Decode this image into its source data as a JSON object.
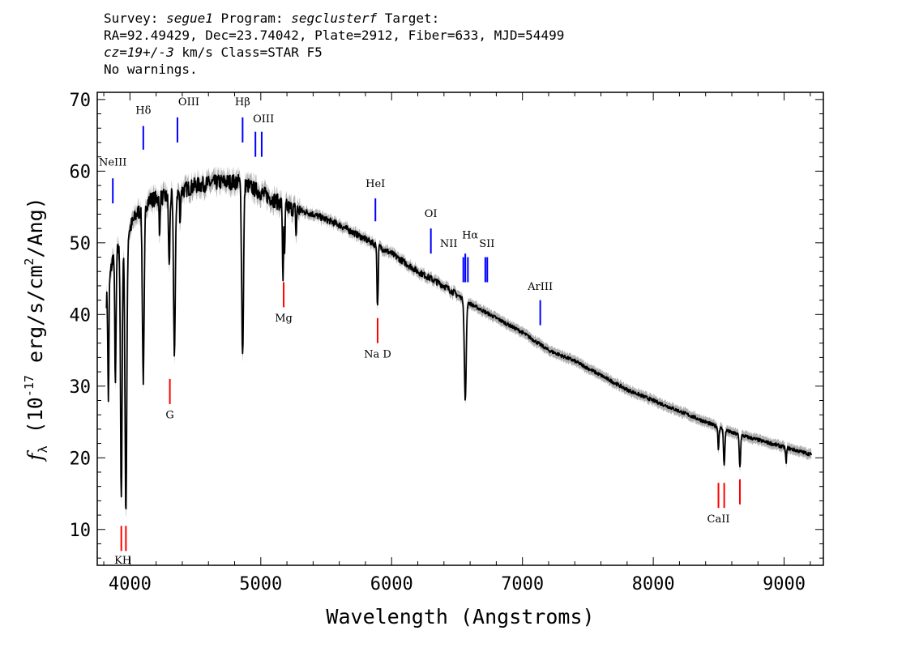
{
  "header": {
    "survey_label": "Survey: ",
    "survey": "segue1",
    "program_label": " Program: ",
    "program": "segclusterf",
    "target_label": " Target:",
    "line2": "RA=92.49429, Dec=23.74042, Plate=2912, Fiber=633, MJD=54499",
    "cz": "cz=19+/-3",
    "cz_units": " km/s Class=STAR F5",
    "line4": "No warnings."
  },
  "chart_data": {
    "type": "line",
    "xlabel": "Wavelength (Angstroms)",
    "ylabel_prefix": "f",
    "ylabel_sub": "λ",
    "ylabel_mid": " (10",
    "ylabel_exp1": "-17",
    "ylabel_mid2": " erg/s/cm",
    "ylabel_exp2": "2",
    "ylabel_end": "/Ang)",
    "xlim": [
      3750,
      9300
    ],
    "ylim": [
      5,
      71
    ],
    "x_ticks": [
      4000,
      5000,
      6000,
      7000,
      8000,
      9000
    ],
    "x_tick_labels": [
      "4000",
      "5000",
      "6000",
      "7000",
      "8000",
      "9000"
    ],
    "y_ticks": [
      10,
      20,
      30,
      40,
      50,
      60,
      70
    ],
    "y_tick_labels": [
      "10",
      "20",
      "30",
      "40",
      "50",
      "60",
      "70"
    ],
    "x_minor_step": 200,
    "y_minor_step": 2,
    "series": [
      {
        "color": "#000000",
        "continuum": [
          [
            3820,
            42
          ],
          [
            3870,
            48
          ],
          [
            3950,
            50
          ],
          [
            4050,
            54
          ],
          [
            4150,
            56
          ],
          [
            4300,
            56.5
          ],
          [
            4500,
            58
          ],
          [
            4700,
            58.5
          ],
          [
            4850,
            58.5
          ],
          [
            5000,
            57
          ],
          [
            5200,
            55
          ],
          [
            5400,
            54
          ],
          [
            5600,
            52.5
          ],
          [
            5800,
            50.5
          ],
          [
            6000,
            48.5
          ],
          [
            6200,
            46
          ],
          [
            6400,
            44
          ],
          [
            6600,
            41.5
          ],
          [
            6800,
            39.5
          ],
          [
            7000,
            37.5
          ],
          [
            7200,
            35
          ],
          [
            7400,
            33.5
          ],
          [
            7600,
            31.5
          ],
          [
            7800,
            29.5
          ],
          [
            8000,
            28
          ],
          [
            8200,
            26.5
          ],
          [
            8400,
            25
          ],
          [
            8600,
            23.5
          ],
          [
            8800,
            22.5
          ],
          [
            9000,
            21.5
          ],
          [
            9200,
            20.5
          ]
        ],
        "absorption_lines": [
          {
            "x": 3835,
            "depth": 16,
            "width": 4
          },
          {
            "x": 3889,
            "depth": 18,
            "width": 5
          },
          {
            "x": 3934,
            "depth": 36,
            "width": 6
          },
          {
            "x": 3969,
            "depth": 38,
            "width": 7
          },
          {
            "x": 4102,
            "depth": 24,
            "width": 7
          },
          {
            "x": 4226,
            "depth": 6,
            "width": 3
          },
          {
            "x": 4300,
            "depth": 10,
            "width": 5
          },
          {
            "x": 4340,
            "depth": 22,
            "width": 7
          },
          {
            "x": 4383,
            "depth": 5,
            "width": 3
          },
          {
            "x": 4861,
            "depth": 24,
            "width": 7
          },
          {
            "x": 5167,
            "depth": 6,
            "width": 3
          },
          {
            "x": 5172,
            "depth": 8,
            "width": 3
          },
          {
            "x": 5183,
            "depth": 7,
            "width": 3
          },
          {
            "x": 5270,
            "depth": 4,
            "width": 3
          },
          {
            "x": 5890,
            "depth": 7,
            "width": 3
          },
          {
            "x": 5896,
            "depth": 6,
            "width": 3
          },
          {
            "x": 6563,
            "depth": 14,
            "width": 7
          },
          {
            "x": 8498,
            "depth": 3,
            "width": 4
          },
          {
            "x": 8542,
            "depth": 5,
            "width": 5
          },
          {
            "x": 8662,
            "depth": 4.5,
            "width": 5
          },
          {
            "x": 9015,
            "depth": 2,
            "width": 4
          }
        ]
      }
    ],
    "emission_markers": [
      {
        "label": "NeIII",
        "x": 3869,
        "y_bot": 55.5,
        "y_top": 59,
        "label_y": 60.8
      },
      {
        "label": "Hδ",
        "x": 4102,
        "y_bot": 63,
        "y_top": 66.3,
        "label_y": 68
      },
      {
        "label": "OIII",
        "x": 4363,
        "y_bot": 64,
        "y_top": 67.5,
        "label_y": 69.2,
        "label_dx": 14
      },
      {
        "label": "Hβ",
        "x": 4861,
        "y_bot": 64,
        "y_top": 67.5,
        "label_y": 69.2
      },
      {
        "label": "OIII",
        "x": 4959,
        "y_bot": 62,
        "y_top": 65.5,
        "label_y": 66.8,
        "label_dx": 10
      },
      {
        "label": "OIII",
        "x": 5007,
        "y_bot": 62,
        "y_top": 65.5,
        "label_y": null
      },
      {
        "label": "HeI",
        "x": 5876,
        "y_bot": 53,
        "y_top": 56.2,
        "label_y": 57.8
      },
      {
        "label": "OI",
        "x": 6300,
        "y_bot": 48.5,
        "y_top": 52,
        "label_y": 53.6
      },
      {
        "label": "NII",
        "x": 6548,
        "y_bot": 44.5,
        "y_top": 48,
        "label_y": 49.4,
        "label_dx": -18
      },
      {
        "label": "Hα",
        "x": 6563,
        "y_bot": 44.5,
        "y_top": 48.5,
        "label_y": 50.6,
        "label_dx": 6
      },
      {
        "label": "NII",
        "x": 6583,
        "y_bot": 44.5,
        "y_top": 48,
        "label_y": null
      },
      {
        "label": "SII",
        "x": 6716,
        "y_bot": 44.5,
        "y_top": 48,
        "label_y": 49.4,
        "label_dx": 2
      },
      {
        "label": "SII",
        "x": 6731,
        "y_bot": 44.5,
        "y_top": 48,
        "label_y": null
      },
      {
        "label": "ArIII",
        "x": 7136,
        "y_bot": 38.5,
        "y_top": 42,
        "label_y": 43.4
      }
    ],
    "absorption_markers": [
      {
        "label": "KH",
        "x": 3934,
        "y_top": 10.5,
        "y_bot": 7,
        "label_y": 5.2,
        "label_dx": 2
      },
      {
        "label": "",
        "x": 3969,
        "y_top": 10.5,
        "y_bot": 7,
        "label_y": null
      },
      {
        "label": "G",
        "x": 4305,
        "y_top": 31,
        "y_bot": 27.5,
        "label_y": 25.5
      },
      {
        "label": "Mg",
        "x": 5175,
        "y_top": 44.5,
        "y_bot": 41,
        "label_y": 39
      },
      {
        "label": "Na D",
        "x": 5893,
        "y_top": 39.5,
        "y_bot": 36,
        "label_y": 34
      },
      {
        "label": "CaII",
        "x": 8498,
        "y_top": 16.5,
        "y_bot": 13,
        "label_y": 11,
        "label_dx": 0
      },
      {
        "label": "",
        "x": 8542,
        "y_top": 16.5,
        "y_bot": 13,
        "label_y": null
      },
      {
        "label": "",
        "x": 8662,
        "y_top": 17,
        "y_bot": 13.5,
        "label_y": null
      }
    ],
    "marker_colors": {
      "emission": "#0000ff",
      "absorption": "#ff0000",
      "error_band": "#b0b0b0",
      "spectrum": "#000000"
    }
  }
}
